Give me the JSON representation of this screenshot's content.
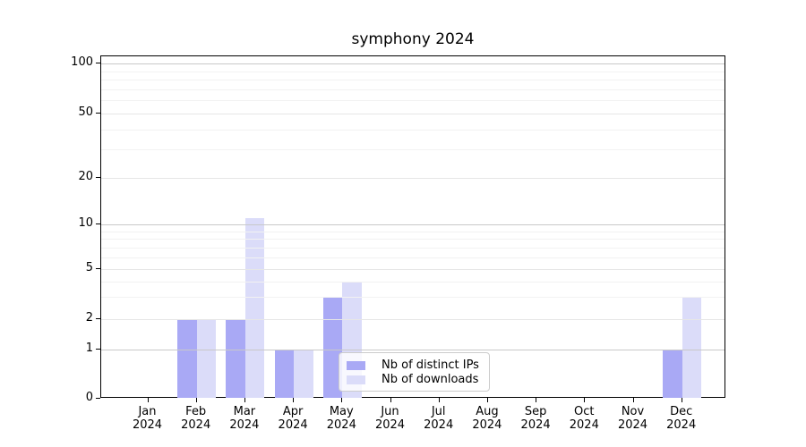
{
  "chart_data": {
    "type": "bar",
    "title": "symphony 2024",
    "categories": [
      {
        "month": "Jan",
        "year": "2024"
      },
      {
        "month": "Feb",
        "year": "2024"
      },
      {
        "month": "Mar",
        "year": "2024"
      },
      {
        "month": "Apr",
        "year": "2024"
      },
      {
        "month": "May",
        "year": "2024"
      },
      {
        "month": "Jun",
        "year": "2024"
      },
      {
        "month": "Jul",
        "year": "2024"
      },
      {
        "month": "Aug",
        "year": "2024"
      },
      {
        "month": "Sep",
        "year": "2024"
      },
      {
        "month": "Oct",
        "year": "2024"
      },
      {
        "month": "Nov",
        "year": "2024"
      },
      {
        "month": "Dec",
        "year": "2024"
      }
    ],
    "series": [
      {
        "name": "Nb of distinct IPs",
        "color": "#a9a9f5",
        "values": [
          0,
          2,
          2,
          1,
          3,
          0,
          0,
          0,
          0,
          0,
          0,
          1
        ]
      },
      {
        "name": "Nb of downloads",
        "color": "#dbdcf9",
        "values": [
          0,
          2,
          11,
          1,
          4,
          0,
          0,
          0,
          0,
          0,
          0,
          3
        ]
      }
    ],
    "ylim": [
      0,
      100
    ],
    "yticks": [
      {
        "label": "100",
        "value": 100
      },
      {
        "label": "50",
        "value": 50
      },
      {
        "label": "20",
        "value": 20
      },
      {
        "label": "10",
        "value": 10
      },
      {
        "label": "5",
        "value": 5
      },
      {
        "label": "2",
        "value": 2
      },
      {
        "label": "1",
        "value": 1
      },
      {
        "label": "0",
        "value": 0
      }
    ],
    "yticks_minor": [
      3,
      4,
      6,
      7,
      8,
      9,
      30,
      40,
      60,
      70,
      80,
      90
    ],
    "grid": true,
    "legend_position": "lower center inside",
    "colors": {
      "grid_power10": "#c8c8c8",
      "grid_labeled": "#e6e6e6",
      "grid_minor": "#f2f2f2",
      "spine": "#000000"
    }
  }
}
